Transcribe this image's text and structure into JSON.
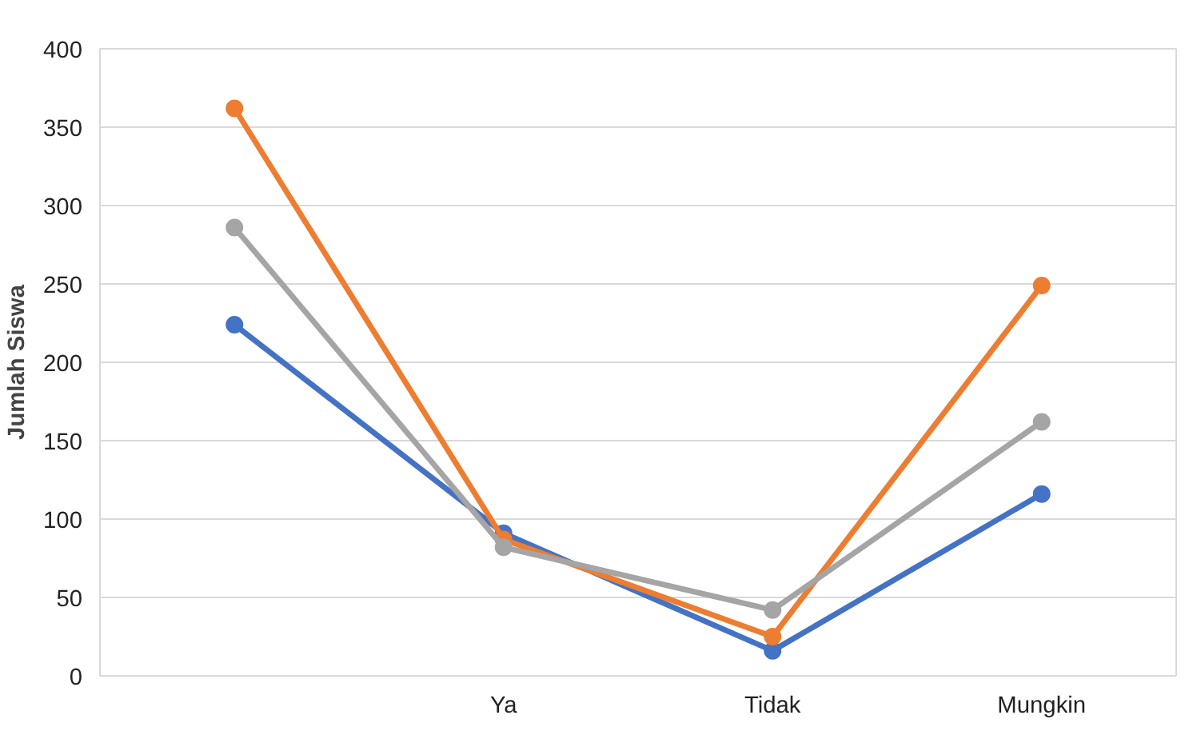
{
  "chart_data": {
    "type": "line",
    "ylabel": "Jumlah Siswa",
    "categories": [
      null,
      "Ya",
      "Tidak",
      "Mungkin"
    ],
    "series": [
      {
        "color": "#4472c4",
        "values": [
          224,
          91,
          16,
          116
        ]
      },
      {
        "color": "#ed7d31",
        "values": [
          362,
          87,
          25,
          249
        ]
      },
      {
        "color": "#a5a5a5",
        "values": [
          286,
          82,
          42,
          162
        ]
      }
    ],
    "ylim": [
      0,
      400
    ],
    "yticks": [
      0,
      50,
      100,
      150,
      200,
      250,
      300,
      350,
      400
    ],
    "grid": "y",
    "marker": "circle",
    "line_style": "solid"
  }
}
